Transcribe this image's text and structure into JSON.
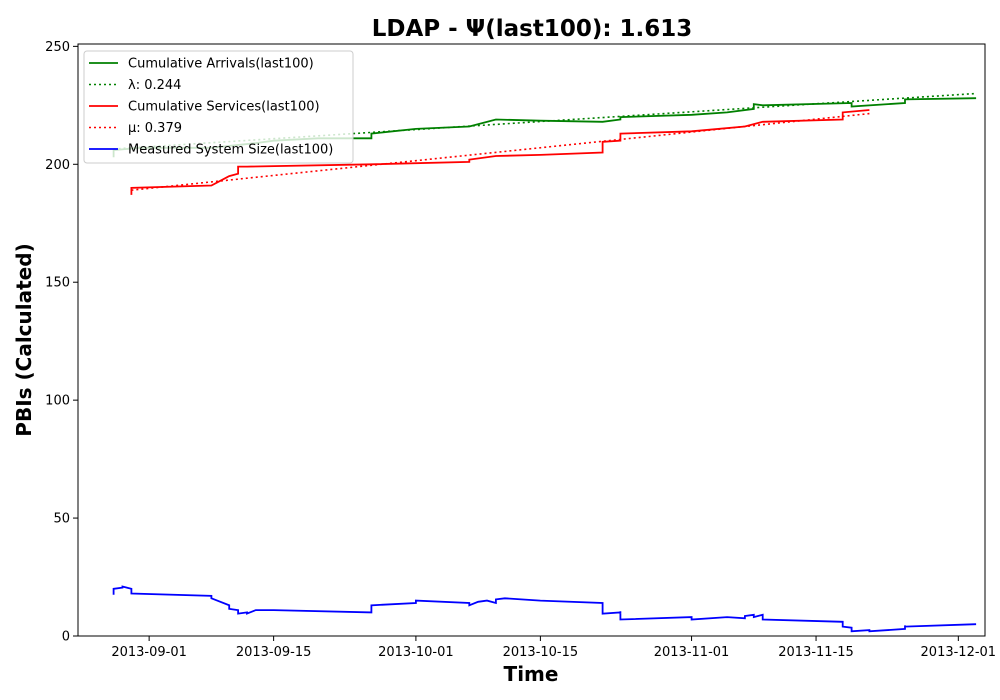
{
  "chart_data": {
    "type": "line",
    "title": "LDAP -  Ψ(last100): 1.613",
    "xlabel": "Time",
    "ylabel": "PBIs (Calculated)",
    "xlim": [
      "2013-08-24",
      "2013-12-04"
    ],
    "ylim": [
      0,
      251
    ],
    "x_ticks": [
      "2013-09-01",
      "2013-09-15",
      "2013-10-01",
      "2013-10-15",
      "2013-11-01",
      "2013-11-15",
      "2013-12-01"
    ],
    "y_ticks": [
      0,
      50,
      100,
      150,
      200,
      250
    ],
    "grid": false,
    "legend_position": "top-left",
    "series": [
      {
        "name": "Cumulative Arrivals(last100)",
        "color": "#008000",
        "style": "solid",
        "points": [
          [
            "2013-08-28",
            203
          ],
          [
            "2013-08-28",
            206
          ],
          [
            "2013-08-31",
            207
          ],
          [
            "2013-09-08",
            207
          ],
          [
            "2013-09-13",
            209
          ],
          [
            "2013-09-15",
            210
          ],
          [
            "2013-09-20",
            211
          ],
          [
            "2013-09-26",
            211
          ],
          [
            "2013-09-26",
            213
          ],
          [
            "2013-10-01",
            215
          ],
          [
            "2013-10-07",
            216
          ],
          [
            "2013-10-10",
            219
          ],
          [
            "2013-10-15",
            218.5
          ],
          [
            "2013-10-22",
            218
          ],
          [
            "2013-10-24",
            219
          ],
          [
            "2013-10-24",
            220
          ],
          [
            "2013-11-01",
            221
          ],
          [
            "2013-11-05",
            222
          ],
          [
            "2013-11-08",
            223.5
          ],
          [
            "2013-11-08",
            225.5
          ],
          [
            "2013-11-09",
            225
          ],
          [
            "2013-11-19",
            226
          ],
          [
            "2013-11-19",
            224.5
          ],
          [
            "2013-11-25",
            226
          ],
          [
            "2013-11-25",
            227.5
          ],
          [
            "2013-12-03",
            228
          ]
        ]
      },
      {
        "name": "λ: 0.244",
        "color": "#008000",
        "style": "dotted",
        "points": [
          [
            "2013-08-28",
            206.5
          ],
          [
            "2013-12-03",
            230
          ]
        ]
      },
      {
        "name": "Cumulative Services(last100)",
        "color": "#ff0000",
        "style": "solid",
        "points": [
          [
            "2013-08-30",
            187
          ],
          [
            "2013-08-30",
            190
          ],
          [
            "2013-09-08",
            191
          ],
          [
            "2013-09-09",
            193
          ],
          [
            "2013-09-10",
            195
          ],
          [
            "2013-09-11",
            196
          ],
          [
            "2013-09-11",
            199
          ],
          [
            "2013-09-12",
            199
          ],
          [
            "2013-09-26",
            200
          ],
          [
            "2013-10-07",
            201
          ],
          [
            "2013-10-07",
            202
          ],
          [
            "2013-10-10",
            203.5
          ],
          [
            "2013-10-15",
            204
          ],
          [
            "2013-10-22",
            205
          ],
          [
            "2013-10-22",
            209.5
          ],
          [
            "2013-10-24",
            210
          ],
          [
            "2013-10-24",
            213
          ],
          [
            "2013-11-01",
            214
          ],
          [
            "2013-11-07",
            216
          ],
          [
            "2013-11-09",
            218
          ],
          [
            "2013-11-18",
            219
          ],
          [
            "2013-11-18",
            222
          ],
          [
            "2013-11-21",
            223
          ]
        ]
      },
      {
        "name": "μ: 0.379",
        "color": "#ff0000",
        "style": "dotted",
        "points": [
          [
            "2013-08-30",
            189
          ],
          [
            "2013-11-21",
            221.5
          ]
        ]
      },
      {
        "name": "Measured System Size(last100)",
        "color": "#0000ff",
        "style": "solid",
        "points": [
          [
            "2013-08-28",
            17.5
          ],
          [
            "2013-08-28",
            20
          ],
          [
            "2013-08-29",
            20.5
          ],
          [
            "2013-08-29",
            21
          ],
          [
            "2013-08-30",
            20
          ],
          [
            "2013-08-30",
            18
          ],
          [
            "2013-09-08",
            17
          ],
          [
            "2013-09-08",
            16
          ],
          [
            "2013-09-10",
            13
          ],
          [
            "2013-09-10",
            11.5
          ],
          [
            "2013-09-11",
            11
          ],
          [
            "2013-09-11",
            9.5
          ],
          [
            "2013-09-12",
            10
          ],
          [
            "2013-09-12",
            9.5
          ],
          [
            "2013-09-13",
            11
          ],
          [
            "2013-09-15",
            11
          ],
          [
            "2013-09-26",
            10
          ],
          [
            "2013-09-26",
            13
          ],
          [
            "2013-10-01",
            14
          ],
          [
            "2013-10-01",
            15
          ],
          [
            "2013-10-07",
            14
          ],
          [
            "2013-10-07",
            13
          ],
          [
            "2013-10-08",
            14.5
          ],
          [
            "2013-10-09",
            15
          ],
          [
            "2013-10-10",
            14
          ],
          [
            "2013-10-10",
            15.5
          ],
          [
            "2013-10-11",
            16
          ],
          [
            "2013-10-15",
            15
          ],
          [
            "2013-10-22",
            14
          ],
          [
            "2013-10-22",
            9.5
          ],
          [
            "2013-10-24",
            10
          ],
          [
            "2013-10-24",
            10.5
          ],
          [
            "2013-10-24",
            7
          ],
          [
            "2013-11-01",
            8
          ],
          [
            "2013-11-01",
            7
          ],
          [
            "2013-11-05",
            8
          ],
          [
            "2013-11-07",
            7.5
          ],
          [
            "2013-11-07",
            8.5
          ],
          [
            "2013-11-08",
            9
          ],
          [
            "2013-11-08",
            8
          ],
          [
            "2013-11-09",
            9
          ],
          [
            "2013-11-09",
            7
          ],
          [
            "2013-11-18",
            6
          ],
          [
            "2013-11-18",
            4
          ],
          [
            "2013-11-19",
            3.5
          ],
          [
            "2013-11-19",
            2
          ],
          [
            "2013-11-21",
            2.5
          ],
          [
            "2013-11-21",
            2
          ],
          [
            "2013-11-25",
            3
          ],
          [
            "2013-11-25",
            4.5
          ],
          [
            "2013-11-25",
            4
          ],
          [
            "2013-12-03",
            5
          ]
        ]
      }
    ]
  }
}
